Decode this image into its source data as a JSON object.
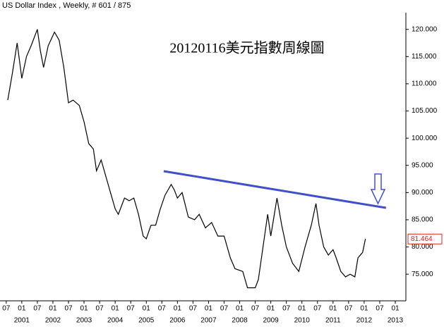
{
  "chart_data": {
    "type": "line",
    "title": "US Dollar Index , Weekly, # 601 / 875",
    "annotation": "20120116美元指數周線圖",
    "x": [
      2000.55,
      2000.7,
      2000.85,
      2001.0,
      2001.15,
      2001.3,
      2001.5,
      2001.6,
      2001.7,
      2001.85,
      2002.05,
      2002.2,
      2002.35,
      2002.5,
      2002.65,
      2002.85,
      2003.0,
      2003.15,
      2003.3,
      2003.4,
      2003.55,
      2003.7,
      2003.85,
      2004.0,
      2004.1,
      2004.3,
      2004.45,
      2004.6,
      2004.75,
      2004.9,
      2005.0,
      2005.15,
      2005.3,
      2005.45,
      2005.6,
      2005.8,
      2005.9,
      2006.0,
      2006.15,
      2006.35,
      2006.55,
      2006.7,
      2006.9,
      2007.1,
      2007.3,
      2007.5,
      2007.7,
      2007.85,
      2008.1,
      2008.25,
      2008.5,
      2008.6,
      2008.75,
      2008.9,
      2009.0,
      2009.2,
      2009.35,
      2009.5,
      2009.7,
      2009.9,
      2010.1,
      2010.3,
      2010.45,
      2010.55,
      2010.7,
      2010.85,
      2011.0,
      2011.1,
      2011.25,
      2011.4,
      2011.55,
      2011.7,
      2011.8,
      2011.95,
      2012.04
    ],
    "series": [
      {
        "name": "US Dollar Index",
        "color": "#000000",
        "values": [
          107,
          112,
          117.5,
          111,
          115,
          117,
          120,
          116,
          113,
          117,
          119.5,
          118,
          113,
          106.5,
          107,
          106,
          103,
          99,
          98,
          94,
          96,
          93,
          90,
          87,
          86,
          89,
          88.5,
          89,
          86,
          82,
          81.5,
          84,
          84,
          87,
          89.5,
          91.5,
          90.5,
          89,
          90,
          85.5,
          85,
          86,
          83.5,
          84.5,
          82,
          82,
          78,
          76,
          75.5,
          72.5,
          72.5,
          74,
          80,
          86,
          82,
          89,
          84,
          80,
          77,
          75.5,
          80,
          84,
          88,
          84,
          80,
          78.5,
          79.5,
          78,
          75.5,
          74.5,
          75,
          74.5,
          78,
          79,
          81.5
        ]
      }
    ],
    "last_value": 81.464,
    "last_value_label": "81.464",
    "last_value_color": "#e02020",
    "trendline": {
      "color": "#4050c8",
      "x": [
        2005.56,
        2012.7
      ],
      "y": [
        93.93,
        87.19
      ]
    },
    "xlim": [
      2000.3,
      2013.34
    ],
    "ylim": [
      70.1,
      125.4
    ],
    "xticks": [
      {
        "value": 2000.5,
        "label": "07"
      },
      {
        "value": 2001,
        "label": "01"
      },
      {
        "value": 2001.5,
        "label": "07"
      },
      {
        "value": 2002,
        "label": "01"
      },
      {
        "value": 2002.5,
        "label": "07"
      },
      {
        "value": 2003,
        "label": "01"
      },
      {
        "value": 2003.5,
        "label": "07"
      },
      {
        "value": 2004,
        "label": "01"
      },
      {
        "value": 2004.5,
        "label": "07"
      },
      {
        "value": 2005,
        "label": "01"
      },
      {
        "value": 2005.5,
        "label": "07"
      },
      {
        "value": 2006,
        "label": "01"
      },
      {
        "value": 2006.5,
        "label": "07"
      },
      {
        "value": 2007,
        "label": "01"
      },
      {
        "value": 2007.5,
        "label": "07"
      },
      {
        "value": 2008,
        "label": "01"
      },
      {
        "value": 2008.5,
        "label": "07"
      },
      {
        "value": 2009,
        "label": "01"
      },
      {
        "value": 2009.5,
        "label": "07"
      },
      {
        "value": 2010,
        "label": "01"
      },
      {
        "value": 2010.5,
        "label": "07"
      },
      {
        "value": 2011,
        "label": "01"
      },
      {
        "value": 2011.5,
        "label": "07"
      },
      {
        "value": 2012,
        "label": "01"
      },
      {
        "value": 2012.5,
        "label": "07"
      },
      {
        "value": 2013,
        "label": "01"
      }
    ],
    "year_ticks": [
      2001,
      2002,
      2003,
      2004,
      2005,
      2006,
      2007,
      2008,
      2009,
      2010,
      2011,
      2012,
      2013
    ],
    "yticks": [
      {
        "value": 75,
        "label": "75.000"
      },
      {
        "value": 80,
        "label": "80.000"
      },
      {
        "value": 85,
        "label": "85.000"
      },
      {
        "value": 90,
        "label": "90.000"
      },
      {
        "value": 95,
        "label": "95.000"
      },
      {
        "value": 100,
        "label": "100.000"
      },
      {
        "value": 105,
        "label": "105.000"
      },
      {
        "value": 110,
        "label": "110.000"
      },
      {
        "value": 115,
        "label": "115.000"
      },
      {
        "value": 120,
        "label": "120.000"
      }
    ]
  }
}
